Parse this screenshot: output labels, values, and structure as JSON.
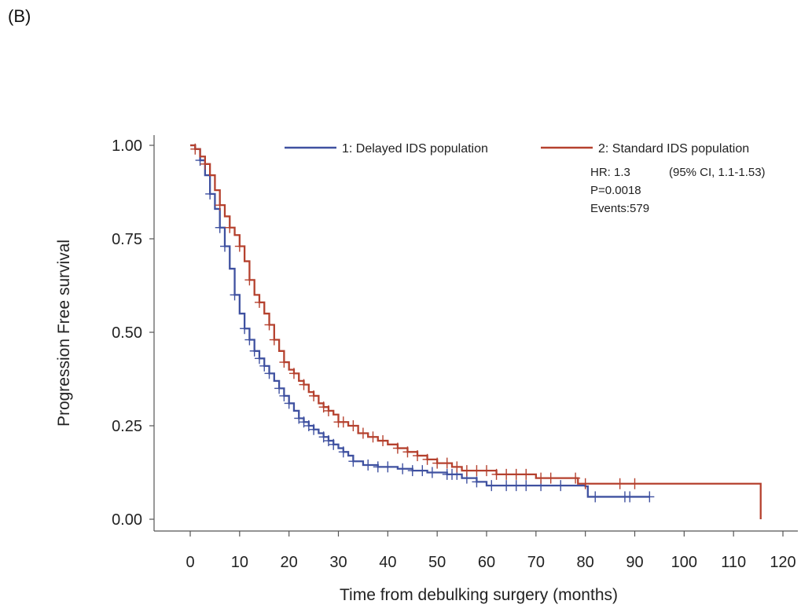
{
  "panel_label": "(B)",
  "chart_data": {
    "type": "line",
    "title": "",
    "xlabel": "Time from debulking surgery (months)",
    "ylabel": "Progression Free survival",
    "xlim": [
      0,
      120
    ],
    "ylim": [
      0,
      1
    ],
    "x_ticks": [
      "0",
      "10",
      "20",
      "30",
      "40",
      "50",
      "60",
      "70",
      "80",
      "90",
      "100",
      "110",
      "120"
    ],
    "y_ticks": [
      "0.00",
      "0.25",
      "0.50",
      "0.75",
      "1.00"
    ],
    "grid": false,
    "legend_position": "top",
    "series": [
      {
        "name": "1: Delayed IDS population",
        "color": "#3f51a0",
        "points": [
          [
            0,
            1.0
          ],
          [
            1,
            0.99
          ],
          [
            2,
            0.96
          ],
          [
            3,
            0.92
          ],
          [
            4,
            0.87
          ],
          [
            5,
            0.83
          ],
          [
            6,
            0.78
          ],
          [
            7,
            0.73
          ],
          [
            8,
            0.67
          ],
          [
            9,
            0.6
          ],
          [
            10,
            0.55
          ],
          [
            11,
            0.51
          ],
          [
            12,
            0.48
          ],
          [
            13,
            0.45
          ],
          [
            14,
            0.43
          ],
          [
            15,
            0.41
          ],
          [
            16,
            0.39
          ],
          [
            17,
            0.37
          ],
          [
            18,
            0.35
          ],
          [
            19,
            0.33
          ],
          [
            20,
            0.31
          ],
          [
            21,
            0.29
          ],
          [
            22,
            0.27
          ],
          [
            23,
            0.26
          ],
          [
            24,
            0.25
          ],
          [
            25,
            0.24
          ],
          [
            26,
            0.23
          ],
          [
            27,
            0.22
          ],
          [
            28,
            0.21
          ],
          [
            29,
            0.2
          ],
          [
            30,
            0.19
          ],
          [
            31,
            0.18
          ],
          [
            32,
            0.17
          ],
          [
            33,
            0.155
          ],
          [
            35,
            0.145
          ],
          [
            38,
            0.14
          ],
          [
            42,
            0.135
          ],
          [
            45,
            0.13
          ],
          [
            48,
            0.125
          ],
          [
            52,
            0.12
          ],
          [
            55,
            0.11
          ],
          [
            58,
            0.1
          ],
          [
            60,
            0.09
          ],
          [
            65,
            0.09
          ],
          [
            70,
            0.09
          ],
          [
            75,
            0.09
          ],
          [
            80,
            0.088
          ],
          [
            80.5,
            0.06
          ],
          [
            85,
            0.06
          ],
          [
            90,
            0.06
          ],
          [
            93,
            0.06
          ]
        ],
        "censor_x": [
          2,
          4,
          6,
          7,
          9,
          11,
          12,
          13,
          14,
          15,
          16,
          18,
          19,
          20,
          22,
          23,
          24,
          25,
          27,
          28,
          29,
          31,
          33,
          36,
          38,
          40,
          43,
          45,
          47,
          49,
          52,
          53,
          54,
          56,
          58,
          61,
          64,
          66,
          68,
          71,
          75,
          82,
          88,
          89,
          93
        ]
      },
      {
        "name": "2: Standard IDS population",
        "color": "#b5412e",
        "points": [
          [
            0,
            1.0
          ],
          [
            1,
            0.99
          ],
          [
            2,
            0.97
          ],
          [
            3,
            0.95
          ],
          [
            4,
            0.92
          ],
          [
            5,
            0.88
          ],
          [
            6,
            0.84
          ],
          [
            7,
            0.81
          ],
          [
            8,
            0.78
          ],
          [
            9,
            0.76
          ],
          [
            10,
            0.73
          ],
          [
            11,
            0.69
          ],
          [
            12,
            0.64
          ],
          [
            13,
            0.6
          ],
          [
            14,
            0.58
          ],
          [
            15,
            0.55
          ],
          [
            16,
            0.52
          ],
          [
            17,
            0.48
          ],
          [
            18,
            0.45
          ],
          [
            19,
            0.42
          ],
          [
            20,
            0.4
          ],
          [
            21,
            0.39
          ],
          [
            22,
            0.37
          ],
          [
            23,
            0.36
          ],
          [
            24,
            0.34
          ],
          [
            25,
            0.33
          ],
          [
            26,
            0.31
          ],
          [
            27,
            0.3
          ],
          [
            28,
            0.29
          ],
          [
            29,
            0.28
          ],
          [
            30,
            0.26
          ],
          [
            32,
            0.25
          ],
          [
            34,
            0.23
          ],
          [
            36,
            0.22
          ],
          [
            38,
            0.21
          ],
          [
            40,
            0.2
          ],
          [
            42,
            0.19
          ],
          [
            44,
            0.18
          ],
          [
            46,
            0.17
          ],
          [
            48,
            0.16
          ],
          [
            50,
            0.15
          ],
          [
            53,
            0.14
          ],
          [
            55,
            0.13
          ],
          [
            58,
            0.13
          ],
          [
            62,
            0.12
          ],
          [
            66,
            0.12
          ],
          [
            70,
            0.11
          ],
          [
            75,
            0.11
          ],
          [
            78,
            0.11
          ],
          [
            78.5,
            0.095
          ],
          [
            85,
            0.095
          ],
          [
            95,
            0.095
          ],
          [
            105,
            0.095
          ],
          [
            115.5,
            0.095
          ],
          [
            115.5,
            0.0
          ]
        ],
        "censor_x": [
          1,
          3,
          6,
          8,
          10,
          12,
          14,
          16,
          17,
          19,
          21,
          23,
          25,
          27,
          28,
          30,
          31,
          33,
          35,
          37,
          39,
          42,
          44,
          46,
          48,
          50,
          52,
          54,
          56,
          58,
          60,
          62,
          64,
          66,
          68,
          71,
          73,
          78,
          80,
          87,
          90
        ]
      }
    ],
    "annotations": {
      "hr": "HR: 1.3",
      "ci": "(95% CI, 1.1-1.53)",
      "p": "P=0.0018",
      "events": "Events:579"
    }
  }
}
